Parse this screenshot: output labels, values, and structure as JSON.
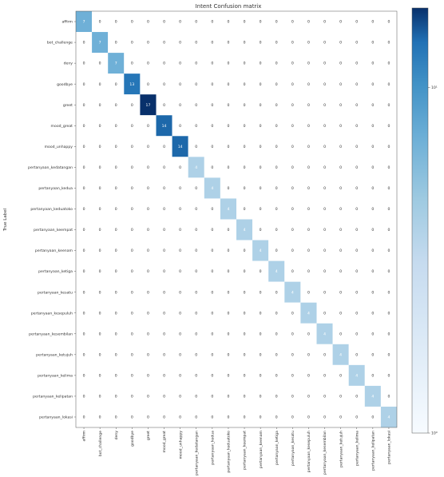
{
  "chart_data": {
    "type": "heatmap",
    "title": "Intent Confusion matrix",
    "ylabel": "True Label",
    "xlabel": "",
    "labels": [
      "affirm",
      "bot_challenge",
      "deny",
      "goodbye",
      "greet",
      "mood_great",
      "mood_unhappy",
      "pertanyaan_kedatangan",
      "pertanyaan_kedua",
      "pertanyaan_keduatoko",
      "pertanyaan_keempat",
      "pertanyaan_keenam",
      "pertanyaan_ketiga",
      "pertanyaan_kesatu",
      "pertanyaan_kesepuluh",
      "pertanyaan_kesembilan",
      "pertanyaan_ketujuh",
      "pertanyaan_kelima",
      "pertanyaan_kelipatan",
      "pertanyaan_lokasi"
    ],
    "xtick_labels": [
      "affirm",
      "bot_challenge",
      "deny",
      "goodbye",
      "greet",
      "mood_great",
      "mood_unhappy",
      "pertanyaan_kedatangan",
      "pertanyaan_kedua",
      "pertanyaan_keduatoko",
      "pertanyaan_keempat",
      "pertanyaan_keenam",
      "pertanyaan_ketiga",
      "pertanyaan_kesatu",
      "pertanyaan_kesepuluh",
      "pertanyaan_kesembilan",
      "pertanyaan_ketujuh",
      "pertanyaan_kelima",
      "pertanyaan_kelipatan",
      "pertanyaan_lokasi"
    ],
    "diagonal": [
      7,
      7,
      7,
      13,
      17,
      14,
      14,
      4,
      4,
      4,
      4,
      4,
      4,
      4,
      4,
      4,
      4,
      4,
      4,
      4
    ],
    "off_diagonal_value": 0,
    "colormap": "Blues",
    "color_scale": "log",
    "colorbar_ticks": [
      "10¹",
      "10⁰"
    ],
    "grid": false
  }
}
